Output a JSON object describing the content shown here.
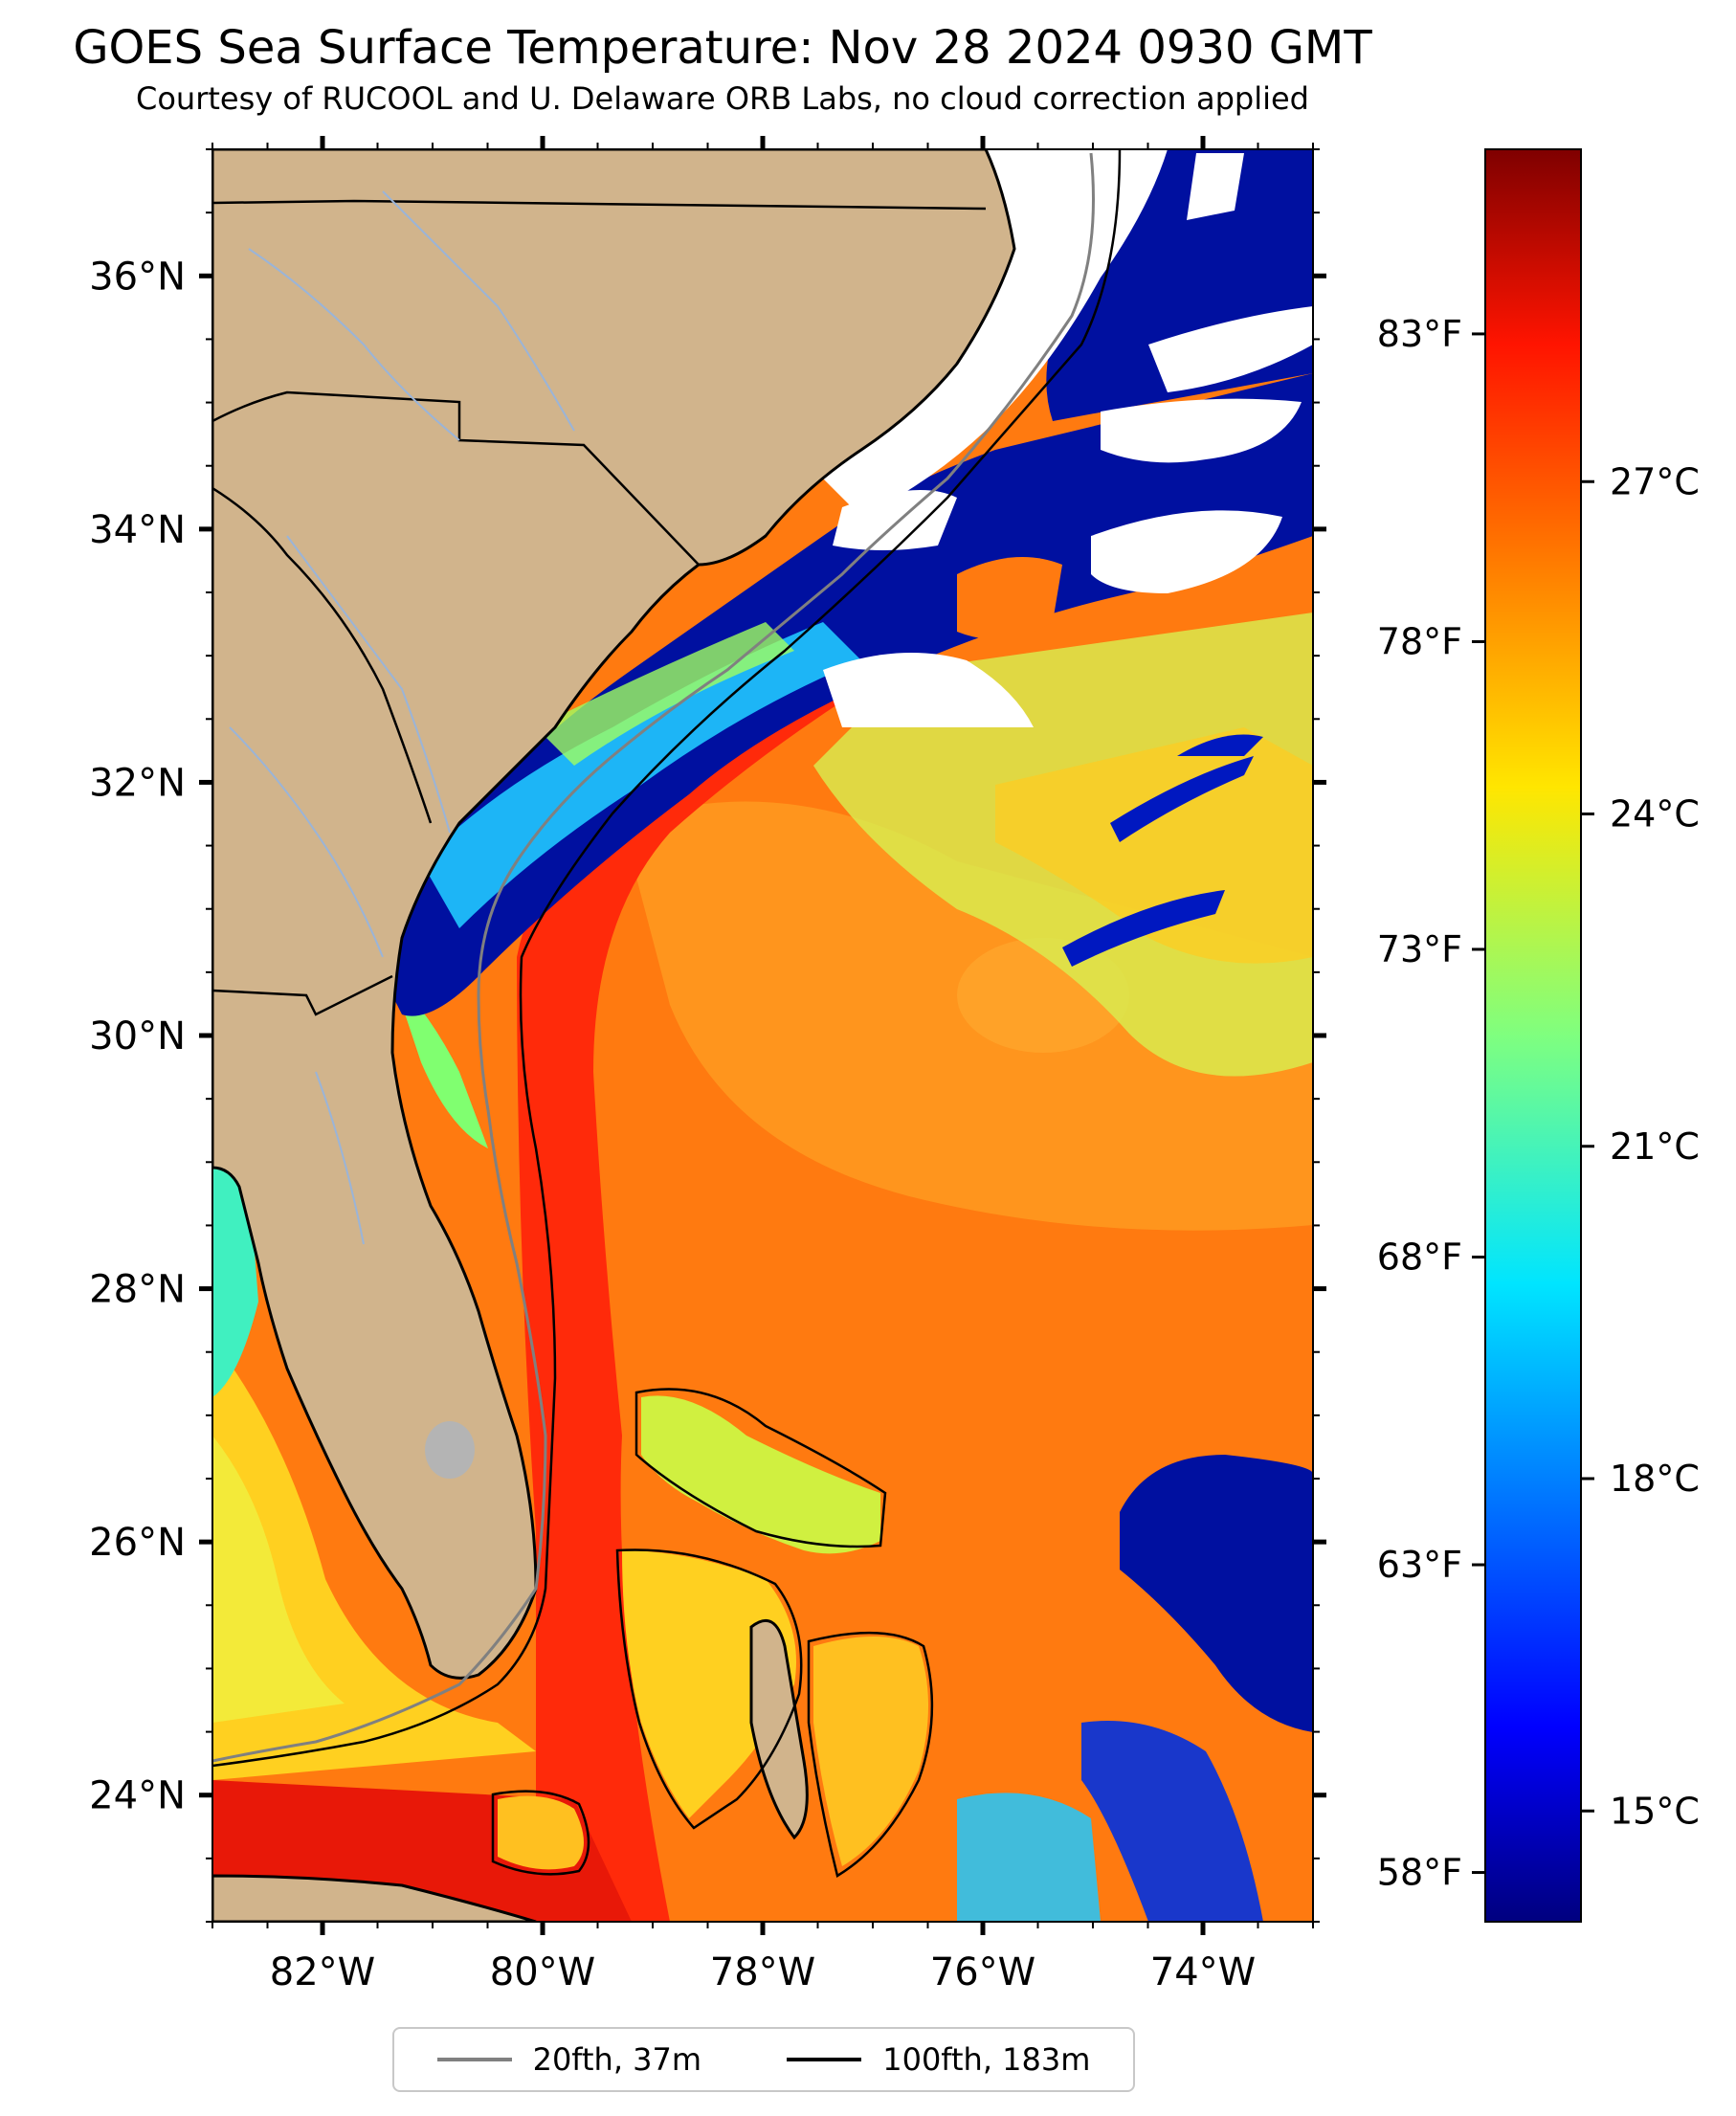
{
  "title": "GOES Sea Surface Temperature: Nov 28 2024 0930 GMT",
  "subtitle": "Courtesy of RUCOOL and U. Delaware ORB Labs, no cloud correction applied",
  "map": {
    "extent": {
      "lon": [
        -83,
        -73
      ],
      "lat": [
        23,
        37
      ]
    },
    "lon_ticks": [
      "82°W",
      "80°W",
      "78°W",
      "76°W",
      "74°W"
    ],
    "lat_ticks": [
      "36°N",
      "34°N",
      "32°N",
      "30°N",
      "28°N",
      "26°N",
      "24°N"
    ],
    "colors": {
      "land": "#d1b48c",
      "cloud": "#ffffff",
      "gulf_stream": "#ff2a0a",
      "open_ocean": "#ff7a10",
      "cold_shelf": "#0010a0"
    }
  },
  "colorbar": {
    "colormap": "jet",
    "celsius_ticks": [
      "27°C",
      "24°C",
      "21°C",
      "18°C",
      "15°C"
    ],
    "fahrenheit_ticks": [
      "83°F",
      "78°F",
      "73°F",
      "68°F",
      "63°F",
      "58°F"
    ]
  },
  "legend": {
    "items": [
      {
        "label": "20fth, 37m",
        "color": "#808080"
      },
      {
        "label": "100fth, 183m",
        "color": "#000000"
      }
    ]
  }
}
